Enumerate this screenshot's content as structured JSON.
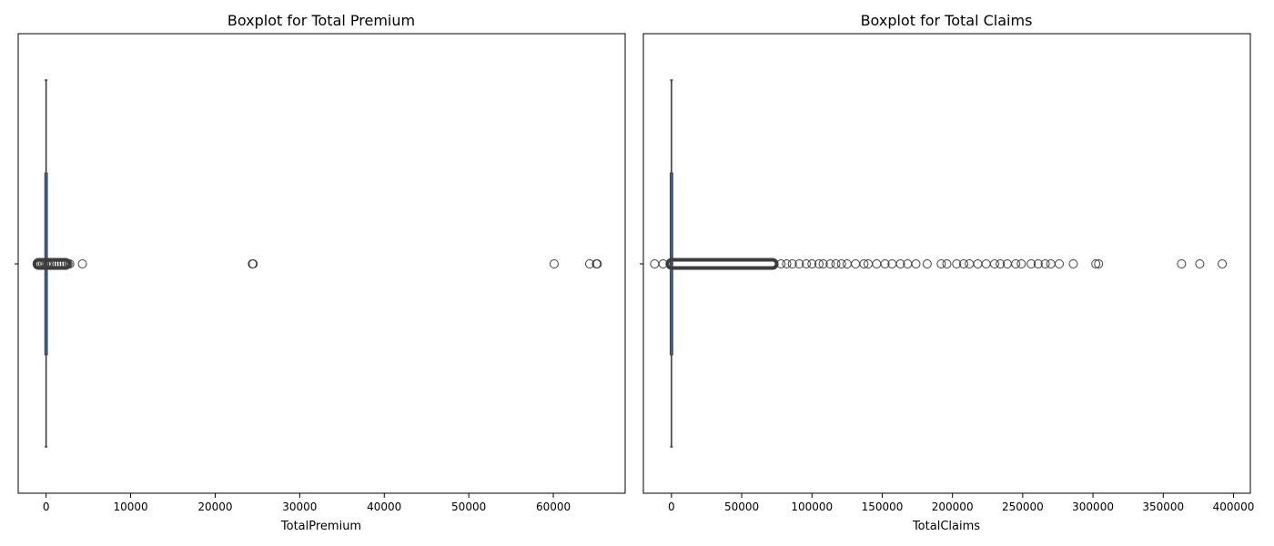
{
  "chart_data": [
    {
      "type": "boxplot",
      "title": "Boxplot for Total Premium",
      "xlabel": "TotalPremium",
      "ylabel": "",
      "xlim": [
        -3300,
        68500
      ],
      "xticks": [
        0,
        10000,
        20000,
        30000,
        40000,
        50000,
        60000
      ],
      "tick_labels": [
        "0",
        "10000",
        "20000",
        "30000",
        "40000",
        "50000",
        "60000"
      ],
      "y_tick_label": "",
      "box": {
        "whislo": 0,
        "q1": 0,
        "median": 0,
        "q3": 0,
        "whishi": 0
      },
      "outlier_band": [
        -900,
        2300
      ],
      "fliers": [
        -900,
        -700,
        -500,
        -300,
        -150,
        100,
        300,
        500,
        800,
        1100,
        1400,
        1700,
        2000,
        2300,
        2600,
        2800,
        4300,
        24400,
        24500,
        60100,
        64300,
        65100,
        65200
      ]
    },
    {
      "type": "boxplot",
      "title": "Boxplot for Total Claims",
      "xlabel": "TotalClaims",
      "ylabel": "",
      "xlim": [
        -20000,
        412000
      ],
      "xticks": [
        0,
        50000,
        100000,
        150000,
        200000,
        250000,
        300000,
        350000,
        400000
      ],
      "tick_labels": [
        "0",
        "50000",
        "100000",
        "150000",
        "200000",
        "250000",
        "300000",
        "350000",
        "400000"
      ],
      "y_tick_label": "",
      "box": {
        "whislo": 0,
        "q1": 0,
        "median": 0,
        "q3": 0,
        "whishi": 0
      },
      "outlier_band": [
        0,
        72000
      ],
      "fliers": [
        -12000,
        -6000,
        78000,
        82000,
        86000,
        91000,
        96000,
        100000,
        105000,
        108000,
        113000,
        117000,
        121000,
        125000,
        131000,
        137000,
        140000,
        146000,
        152000,
        157000,
        163000,
        168000,
        174000,
        182000,
        192000,
        196000,
        203000,
        208000,
        212000,
        218000,
        224000,
        230000,
        234000,
        239000,
        245000,
        249000,
        256000,
        261000,
        266000,
        270000,
        276000,
        286000,
        302000,
        304000,
        363000,
        376000,
        392000
      ]
    }
  ]
}
